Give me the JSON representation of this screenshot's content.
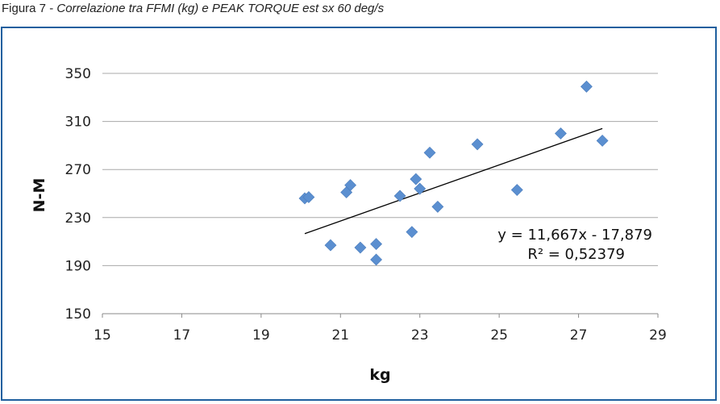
{
  "caption": {
    "figure_label": "Figura 7",
    "separator": " - ",
    "subtitle": "Correlazione tra FFMI (kg) e PEAK TORQUE est sx 60 deg/s"
  },
  "chart_data": {
    "type": "scatter",
    "xlabel": "kg",
    "ylabel": "N-M",
    "xlim": [
      15,
      29
    ],
    "ylim": [
      150,
      350
    ],
    "x_ticks": [
      15,
      17,
      19,
      21,
      23,
      25,
      27,
      29
    ],
    "y_ticks": [
      150,
      190,
      230,
      270,
      310,
      350
    ],
    "grid": "horizontal",
    "marker_color": "#5b8fd0",
    "trendline_color": "#000000",
    "series": [
      {
        "points": [
          {
            "x": 20.1,
            "y": 246
          },
          {
            "x": 20.2,
            "y": 247
          },
          {
            "x": 20.75,
            "y": 207
          },
          {
            "x": 21.15,
            "y": 251
          },
          {
            "x": 21.25,
            "y": 257
          },
          {
            "x": 21.5,
            "y": 205
          },
          {
            "x": 21.9,
            "y": 208
          },
          {
            "x": 21.9,
            "y": 195
          },
          {
            "x": 22.5,
            "y": 248
          },
          {
            "x": 22.8,
            "y": 218
          },
          {
            "x": 22.9,
            "y": 262
          },
          {
            "x": 23.0,
            "y": 254
          },
          {
            "x": 23.25,
            "y": 284
          },
          {
            "x": 23.45,
            "y": 239
          },
          {
            "x": 24.45,
            "y": 291
          },
          {
            "x": 25.45,
            "y": 253
          },
          {
            "x": 26.55,
            "y": 300
          },
          {
            "x": 27.2,
            "y": 339
          },
          {
            "x": 27.6,
            "y": 294
          }
        ]
      }
    ],
    "trendline": {
      "x_start": 20.1,
      "x_end": 27.6,
      "slope": 11.667,
      "intercept": -17.879,
      "equation": "y = 11,667x - 17,879",
      "r_squared": "R² = 0,52379"
    }
  }
}
